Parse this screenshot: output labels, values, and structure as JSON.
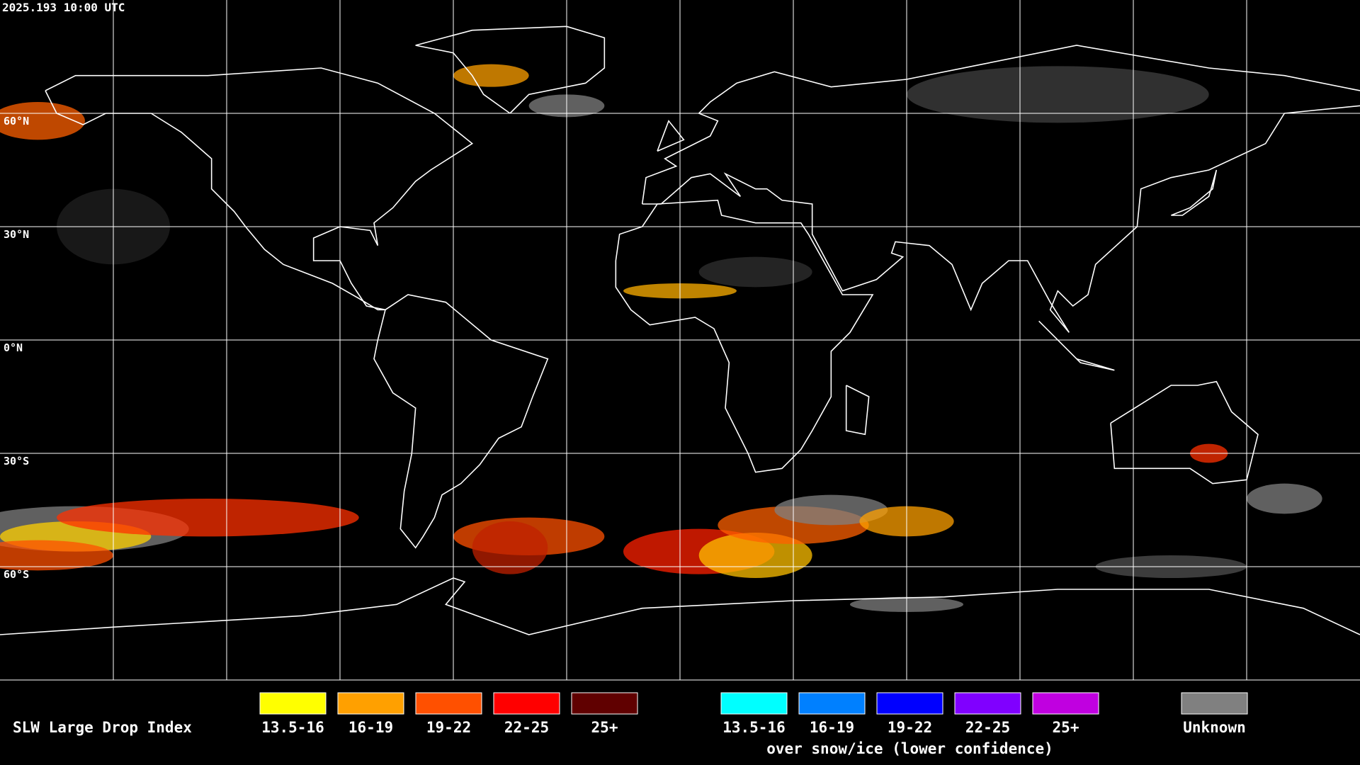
{
  "header": {
    "timestamp": "2025.193 10:00 UTC"
  },
  "grid": {
    "latitude_labels": [
      "60°N",
      "30°N",
      "0°N",
      "30°S",
      "60°S"
    ]
  },
  "legend": {
    "title": "SLW Large Drop Index",
    "groups": [
      {
        "items": [
          {
            "label": "13.5-16",
            "color": "#ffff00"
          },
          {
            "label": "16-19",
            "color": "#ffa000"
          },
          {
            "label": "19-22",
            "color": "#ff5000"
          },
          {
            "label": "22-25",
            "color": "#ff0000"
          },
          {
            "label": "25+",
            "color": "#600000"
          }
        ]
      },
      {
        "items": [
          {
            "label": "13.5-16",
            "color": "#00ffff"
          },
          {
            "label": "16-19",
            "color": "#0080ff"
          },
          {
            "label": "19-22",
            "color": "#0000ff"
          },
          {
            "label": "22-25",
            "color": "#8000ff"
          },
          {
            "label": "25+",
            "color": "#c000e0"
          }
        ],
        "caption": "over snow/ice (lower confidence)"
      },
      {
        "items": [
          {
            "label": "Unknown",
            "color": "#808080"
          }
        ]
      }
    ]
  }
}
